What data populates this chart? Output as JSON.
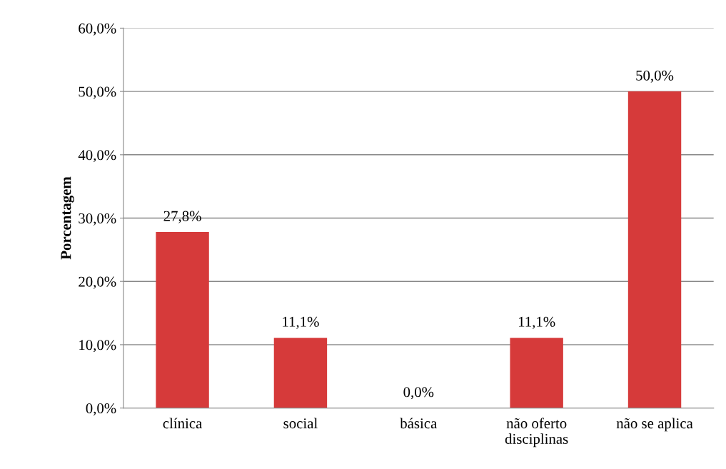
{
  "chart_data": {
    "type": "bar",
    "ylabel": "Porcentagem",
    "categories": [
      "clínica",
      "social",
      "básica",
      "não oferto\ndisciplinas",
      "não se aplica"
    ],
    "values": [
      27.8,
      11.1,
      0.0,
      11.1,
      50.0
    ],
    "value_labels": [
      "27,8%",
      "11,1%",
      "0,0%",
      "11,1%",
      "50,0%"
    ],
    "color": "#d63a3a",
    "ylim": [
      0,
      60
    ],
    "yticks": [
      {
        "value": 0,
        "label": "0,0%"
      },
      {
        "value": 10,
        "label": "10,0%"
      },
      {
        "value": 20,
        "label": "20,0%"
      },
      {
        "value": 30,
        "label": "30,0%"
      },
      {
        "value": 40,
        "label": "40,0%"
      },
      {
        "value": 50,
        "label": "50,0%"
      },
      {
        "value": 60,
        "label": "60,0%"
      }
    ],
    "grid": "y"
  }
}
